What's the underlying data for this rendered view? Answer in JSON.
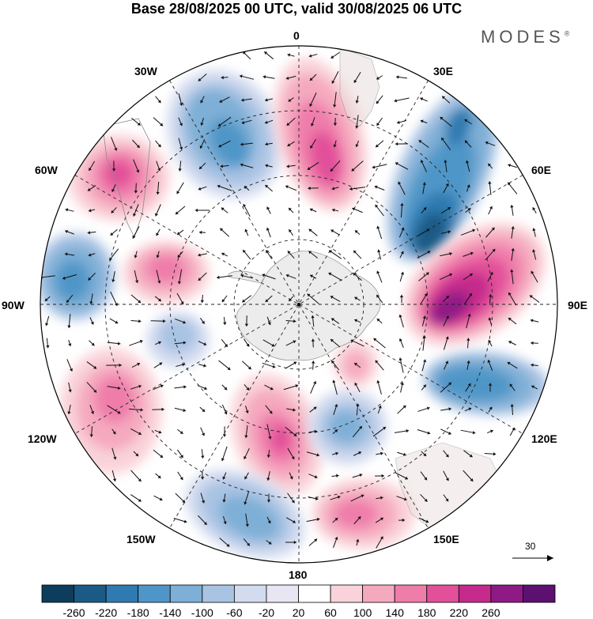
{
  "title": "Base 28/08/2025 00 UTC, valid 30/08/2025 06 UTC",
  "brand": "MODES",
  "brand_mark": "®",
  "longitude_labels": {
    "lon_0": "0",
    "lon_30e": "30E",
    "lon_60e": "60E",
    "lon_90e": "90E",
    "lon_120e": "120E",
    "lon_150e": "150E",
    "lon_180": "180",
    "lon_150w": "150W",
    "lon_120w": "120W",
    "lon_90w": "90W",
    "lon_60w": "60W",
    "lon_30w": "30W"
  },
  "vector_reference": {
    "label": "30"
  },
  "colorbar": {
    "ticks": [
      "-260",
      "-220",
      "-180",
      "-140",
      "-100",
      "-60",
      "-20",
      "20",
      "60",
      "100",
      "140",
      "180",
      "220",
      "260"
    ],
    "colors": [
      "#0d3d5c",
      "#1b5a85",
      "#2f7ab0",
      "#4f96c8",
      "#7eafd6",
      "#a9c3e3",
      "#d3dbef",
      "#e8e6f3",
      "#ffffff",
      "#f9d3d9",
      "#f5a9bf",
      "#ef7daa",
      "#e2509a",
      "#c52a8c",
      "#8e1a86",
      "#5c1070"
    ],
    "palette_order": "low-to-high"
  },
  "anomaly_regions": [
    {
      "sign": "negative",
      "level": -160,
      "near": "30W, mid-latitudes"
    },
    {
      "sign": "positive",
      "level": 140,
      "near": "0, mid-latitudes"
    },
    {
      "sign": "negative",
      "level": -220,
      "near": "30E-60E, mid-latitudes"
    },
    {
      "sign": "positive",
      "level": 150,
      "near": "60W"
    },
    {
      "sign": "negative",
      "level": -140,
      "near": "90W, outer ring"
    },
    {
      "sign": "positive",
      "level": 120,
      "near": "75W"
    },
    {
      "sign": "positive",
      "level": 240,
      "near": "90E"
    },
    {
      "sign": "negative",
      "level": -180,
      "near": "120E"
    },
    {
      "sign": "positive",
      "level": 100,
      "near": "120W"
    },
    {
      "sign": "positive",
      "level": 130,
      "near": "160W, inner"
    },
    {
      "sign": "negative",
      "level": -140,
      "near": "150E-160E, inner"
    },
    {
      "sign": "negative",
      "level": -120,
      "near": "150W-180"
    },
    {
      "sign": "positive",
      "level": 130,
      "near": "165E"
    },
    {
      "sign": "negative",
      "level": -80,
      "near": "100W, inner"
    },
    {
      "sign": "positive",
      "level": 60,
      "near": "140E, inner"
    }
  ]
}
